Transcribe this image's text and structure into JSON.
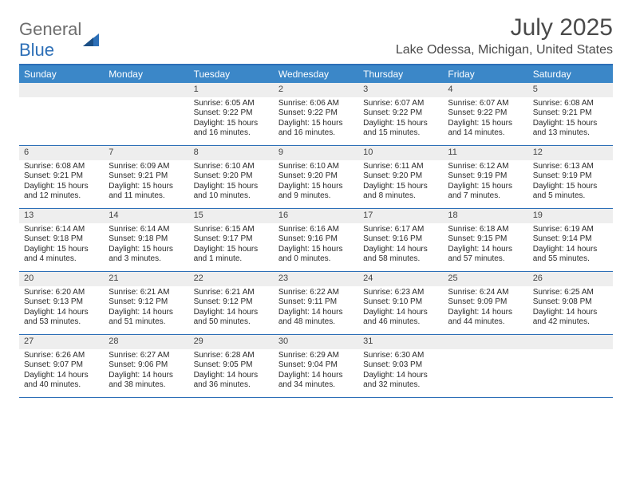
{
  "brand": {
    "part1": "General",
    "part2": "Blue"
  },
  "title": "July 2025",
  "location": "Lake Odessa, Michigan, United States",
  "colors": {
    "header_bg": "#3b87c8",
    "border": "#2d6fb7",
    "daynum_bg": "#eeeeee",
    "text": "#2a2a2a",
    "title_text": "#4a4a4a"
  },
  "day_names": [
    "Sunday",
    "Monday",
    "Tuesday",
    "Wednesday",
    "Thursday",
    "Friday",
    "Saturday"
  ],
  "weeks": [
    [
      null,
      null,
      {
        "n": "1",
        "sr": "6:05 AM",
        "ss": "9:22 PM",
        "dl": "15 hours and 16 minutes."
      },
      {
        "n": "2",
        "sr": "6:06 AM",
        "ss": "9:22 PM",
        "dl": "15 hours and 16 minutes."
      },
      {
        "n": "3",
        "sr": "6:07 AM",
        "ss": "9:22 PM",
        "dl": "15 hours and 15 minutes."
      },
      {
        "n": "4",
        "sr": "6:07 AM",
        "ss": "9:22 PM",
        "dl": "15 hours and 14 minutes."
      },
      {
        "n": "5",
        "sr": "6:08 AM",
        "ss": "9:21 PM",
        "dl": "15 hours and 13 minutes."
      }
    ],
    [
      {
        "n": "6",
        "sr": "6:08 AM",
        "ss": "9:21 PM",
        "dl": "15 hours and 12 minutes."
      },
      {
        "n": "7",
        "sr": "6:09 AM",
        "ss": "9:21 PM",
        "dl": "15 hours and 11 minutes."
      },
      {
        "n": "8",
        "sr": "6:10 AM",
        "ss": "9:20 PM",
        "dl": "15 hours and 10 minutes."
      },
      {
        "n": "9",
        "sr": "6:10 AM",
        "ss": "9:20 PM",
        "dl": "15 hours and 9 minutes."
      },
      {
        "n": "10",
        "sr": "6:11 AM",
        "ss": "9:20 PM",
        "dl": "15 hours and 8 minutes."
      },
      {
        "n": "11",
        "sr": "6:12 AM",
        "ss": "9:19 PM",
        "dl": "15 hours and 7 minutes."
      },
      {
        "n": "12",
        "sr": "6:13 AM",
        "ss": "9:19 PM",
        "dl": "15 hours and 5 minutes."
      }
    ],
    [
      {
        "n": "13",
        "sr": "6:14 AM",
        "ss": "9:18 PM",
        "dl": "15 hours and 4 minutes."
      },
      {
        "n": "14",
        "sr": "6:14 AM",
        "ss": "9:18 PM",
        "dl": "15 hours and 3 minutes."
      },
      {
        "n": "15",
        "sr": "6:15 AM",
        "ss": "9:17 PM",
        "dl": "15 hours and 1 minute."
      },
      {
        "n": "16",
        "sr": "6:16 AM",
        "ss": "9:16 PM",
        "dl": "15 hours and 0 minutes."
      },
      {
        "n": "17",
        "sr": "6:17 AM",
        "ss": "9:16 PM",
        "dl": "14 hours and 58 minutes."
      },
      {
        "n": "18",
        "sr": "6:18 AM",
        "ss": "9:15 PM",
        "dl": "14 hours and 57 minutes."
      },
      {
        "n": "19",
        "sr": "6:19 AM",
        "ss": "9:14 PM",
        "dl": "14 hours and 55 minutes."
      }
    ],
    [
      {
        "n": "20",
        "sr": "6:20 AM",
        "ss": "9:13 PM",
        "dl": "14 hours and 53 minutes."
      },
      {
        "n": "21",
        "sr": "6:21 AM",
        "ss": "9:12 PM",
        "dl": "14 hours and 51 minutes."
      },
      {
        "n": "22",
        "sr": "6:21 AM",
        "ss": "9:12 PM",
        "dl": "14 hours and 50 minutes."
      },
      {
        "n": "23",
        "sr": "6:22 AM",
        "ss": "9:11 PM",
        "dl": "14 hours and 48 minutes."
      },
      {
        "n": "24",
        "sr": "6:23 AM",
        "ss": "9:10 PM",
        "dl": "14 hours and 46 minutes."
      },
      {
        "n": "25",
        "sr": "6:24 AM",
        "ss": "9:09 PM",
        "dl": "14 hours and 44 minutes."
      },
      {
        "n": "26",
        "sr": "6:25 AM",
        "ss": "9:08 PM",
        "dl": "14 hours and 42 minutes."
      }
    ],
    [
      {
        "n": "27",
        "sr": "6:26 AM",
        "ss": "9:07 PM",
        "dl": "14 hours and 40 minutes."
      },
      {
        "n": "28",
        "sr": "6:27 AM",
        "ss": "9:06 PM",
        "dl": "14 hours and 38 minutes."
      },
      {
        "n": "29",
        "sr": "6:28 AM",
        "ss": "9:05 PM",
        "dl": "14 hours and 36 minutes."
      },
      {
        "n": "30",
        "sr": "6:29 AM",
        "ss": "9:04 PM",
        "dl": "14 hours and 34 minutes."
      },
      {
        "n": "31",
        "sr": "6:30 AM",
        "ss": "9:03 PM",
        "dl": "14 hours and 32 minutes."
      },
      null,
      null
    ]
  ],
  "labels": {
    "sunrise": "Sunrise: ",
    "sunset": "Sunset: ",
    "daylight": "Daylight: "
  }
}
